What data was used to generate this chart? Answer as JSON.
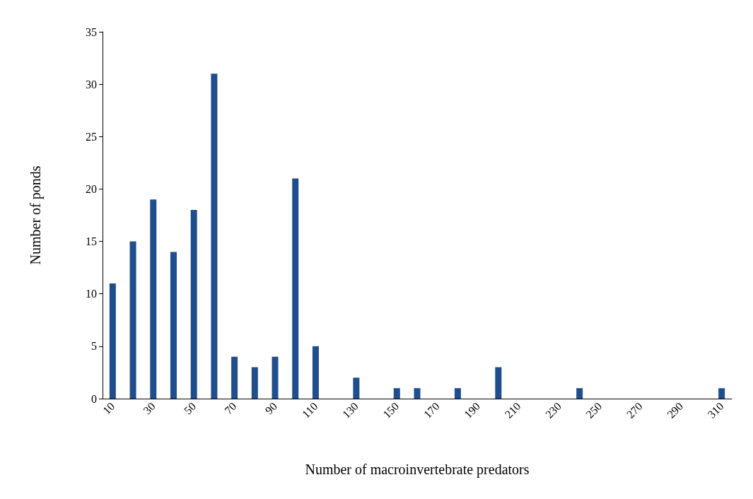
{
  "chart_data": {
    "type": "bar",
    "xlabel": "Number of macroinvertebrate predators",
    "ylabel": "Number of ponds",
    "categories": [
      "10",
      null,
      "30",
      null,
      "50",
      null,
      "70",
      null,
      "90",
      null,
      "110",
      null,
      "130",
      null,
      "150",
      null,
      "170",
      null,
      "190",
      null,
      "210",
      null,
      "230",
      null,
      "250",
      null,
      "270",
      null,
      "290",
      null,
      "310"
    ],
    "values": [
      11,
      15,
      19,
      14,
      18,
      31,
      4,
      3,
      4,
      21,
      5,
      0,
      2,
      0,
      1,
      1,
      0,
      1,
      0,
      3,
      0,
      0,
      0,
      1,
      0,
      0,
      0,
      0,
      0,
      0,
      1
    ],
    "color": "#1f4e8c",
    "ylim": [
      0,
      35
    ],
    "yticks": [
      0,
      5,
      10,
      15,
      20,
      25,
      30,
      35
    ],
    "grid": false
  }
}
